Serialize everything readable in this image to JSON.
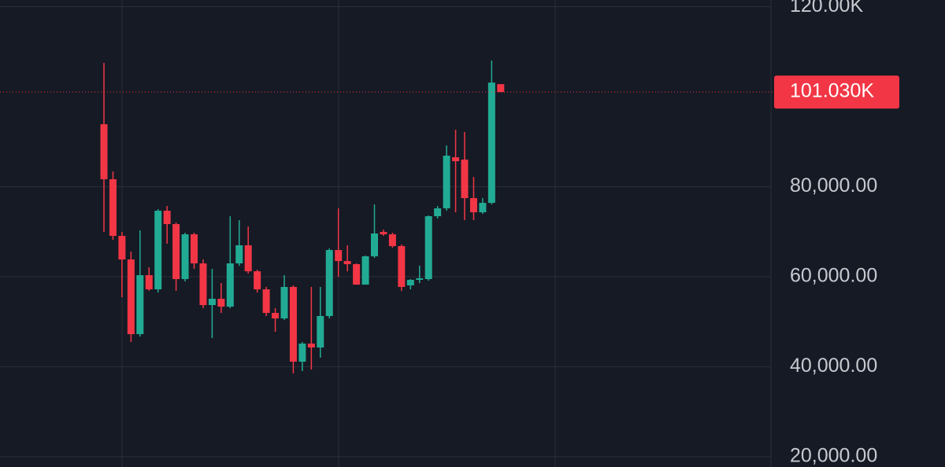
{
  "chart_data": {
    "type": "candlestick",
    "open": [
      93890,
      81660,
      69080,
      63840,
      47250,
      60350,
      57200,
      74670,
      71700,
      59480,
      69430,
      62970,
      53710,
      55110,
      53360,
      62970,
      66990,
      61220,
      57200,
      51960,
      50740,
      57730,
      41130,
      45150,
      44280,
      51270,
      65940,
      63490,
      62800,
      58250,
      64540,
      69950,
      69430,
      66810,
      58080,
      59310,
      59480,
      73450,
      75200,
      86550,
      86030,
      77470,
      74320,
      76420,
      102790
    ],
    "high": [
      107510,
      83400,
      69950,
      65590,
      70300,
      62100,
      75020,
      75720,
      72050,
      69780,
      69780,
      63840,
      61750,
      58600,
      73450,
      72570,
      71180,
      61570,
      57730,
      53010,
      60350,
      58080,
      45500,
      57730,
      57730,
      66290,
      75200,
      66990,
      62970,
      64710,
      76070,
      70480,
      69780,
      67160,
      59480,
      62450,
      73620,
      75720,
      89170,
      92660,
      92140,
      82180,
      77470,
      108030,
      102790
    ],
    "low": [
      69950,
      68210,
      55460,
      45500,
      46720,
      56860,
      56510,
      67340,
      56860,
      58950,
      61750,
      53010,
      46370,
      51960,
      53010,
      62450,
      60700,
      56510,
      51270,
      47770,
      50390,
      38520,
      39040,
      39390,
      42010,
      50740,
      60000,
      61220,
      58250,
      58250,
      64190,
      69080,
      66460,
      56860,
      57200,
      58600,
      59130,
      72920,
      74670,
      74320,
      72570,
      72570,
      73970,
      76070,
      101030
    ],
    "close": [
      81660,
      69080,
      63840,
      47250,
      60350,
      57200,
      74670,
      71700,
      59480,
      69430,
      62970,
      53710,
      55110,
      53360,
      62970,
      66990,
      61220,
      57200,
      51960,
      50740,
      57730,
      41130,
      45150,
      44280,
      51270,
      65940,
      63490,
      62800,
      58250,
      64540,
      69610,
      69430,
      66810,
      57730,
      59310,
      59660,
      73450,
      75200,
      86900,
      85670,
      77470,
      74320,
      76420,
      103140,
      101030
    ],
    "up_color": "#22ab94",
    "down_color": "#f23645",
    "ylim": [
      17730,
      121490
    ],
    "yticks": [
      {
        "value": 20000,
        "label": "20,000.00"
      },
      {
        "value": 40000,
        "label": "40,000.00"
      },
      {
        "value": 60000,
        "label": "60,000.00"
      },
      {
        "value": 80000,
        "label": "80,000.00"
      },
      {
        "value": 120000,
        "label": "120.00K"
      }
    ],
    "grid": true,
    "last_price": {
      "value": 101030,
      "label": "101.030K"
    }
  }
}
